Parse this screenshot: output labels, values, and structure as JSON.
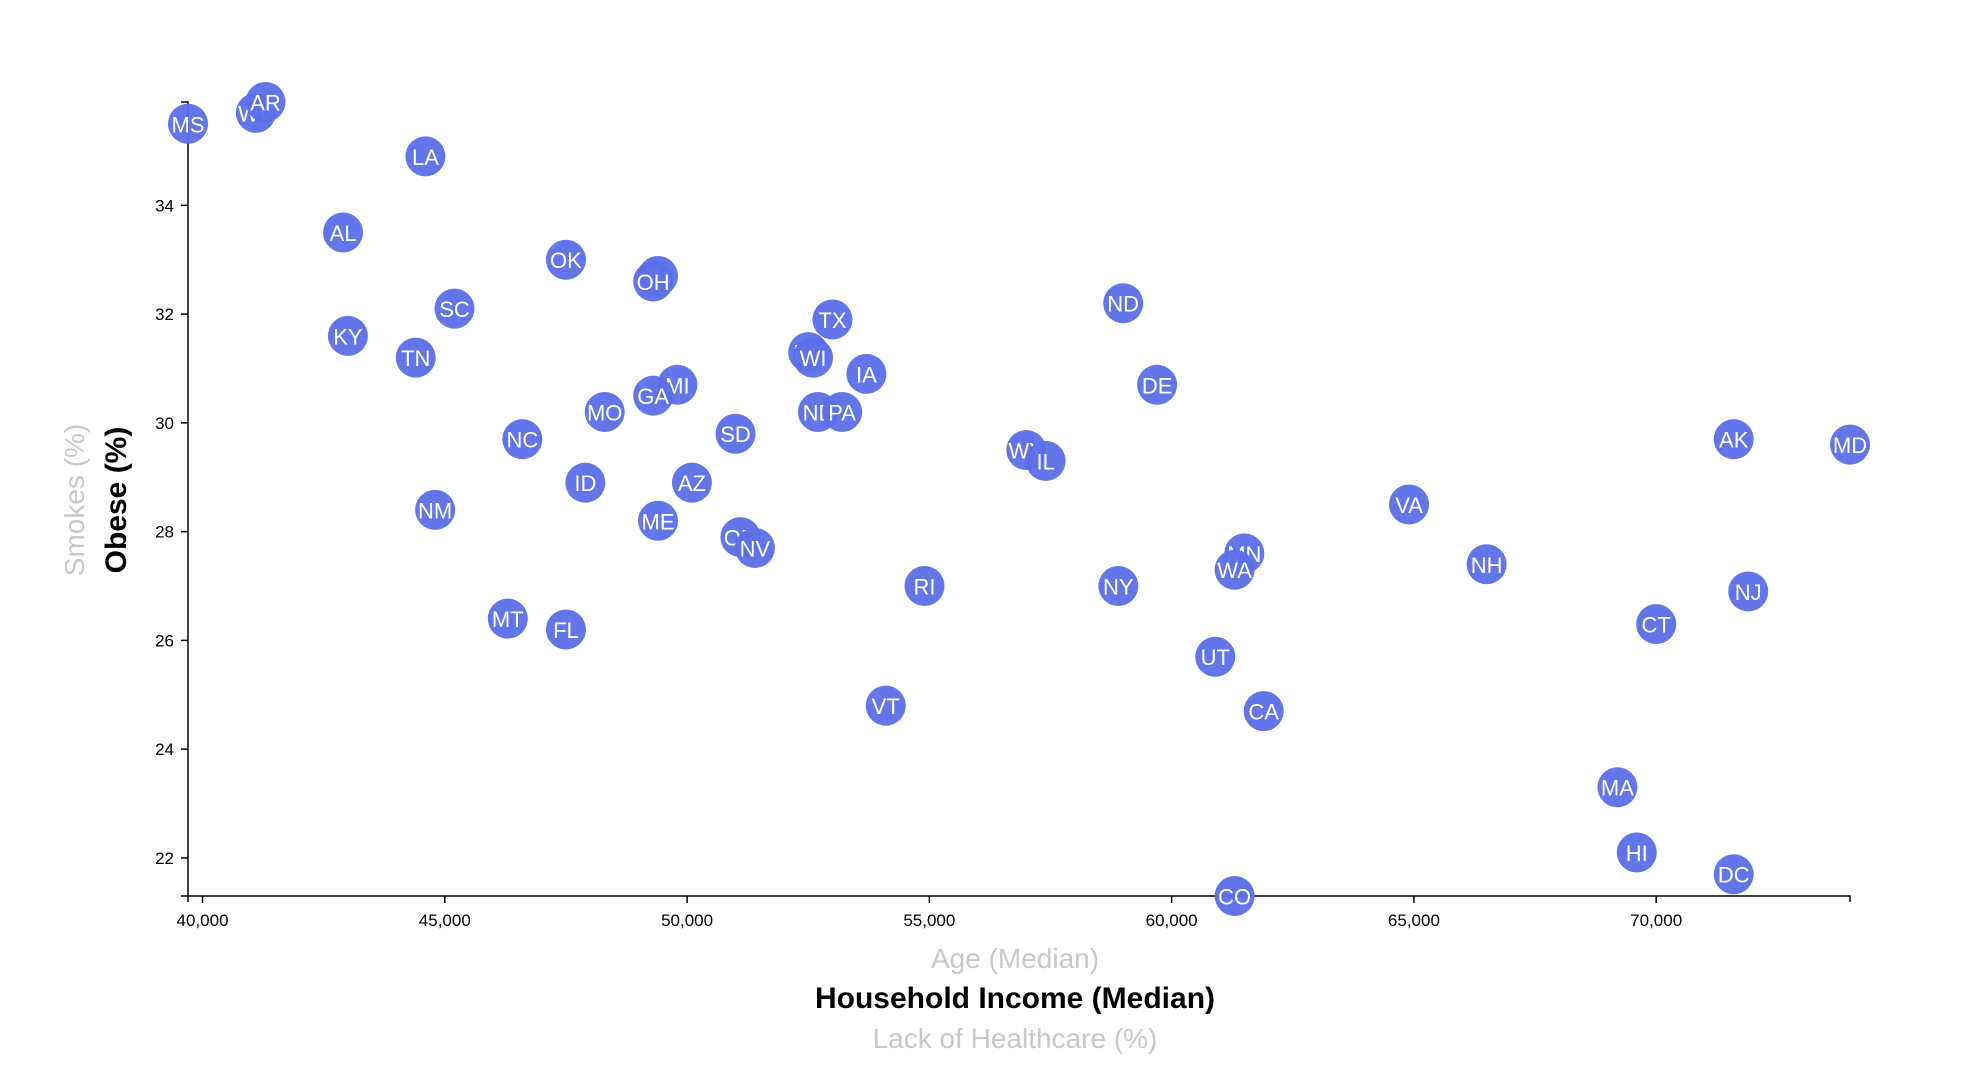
{
  "chart_data": {
    "type": "scatter",
    "x_axis": {
      "active_label": "Household Income (Median)",
      "inactive_labels": [
        "Age (Median)",
        "Lack of Healthcare (%)"
      ],
      "range": [
        39700,
        74000
      ],
      "ticks": [
        40000,
        45000,
        50000,
        55000,
        60000,
        65000,
        70000
      ],
      "tick_labels": [
        "40,000",
        "45,000",
        "50,000",
        "55,000",
        "60,000",
        "65,000",
        "70,000"
      ]
    },
    "y_axis": {
      "active_label": "Obese (%)",
      "inactive_labels": [
        "Smokes (%)"
      ],
      "range": [
        21.3,
        35.9
      ],
      "ticks": [
        22,
        24,
        26,
        28,
        30,
        32,
        34
      ],
      "tick_labels": [
        "22",
        "24",
        "26",
        "28",
        "30",
        "32",
        "34"
      ]
    },
    "grid": false,
    "colors": {
      "marker": "#5a6fe8",
      "marker_label": "#ffffff",
      "inactive_axis_label": "#c8c8c8"
    },
    "points": [
      {
        "label": "MS",
        "x": 39700,
        "y": 35.5
      },
      {
        "label": "WV",
        "x": 41100,
        "y": 35.7
      },
      {
        "label": "AR",
        "x": 41300,
        "y": 35.9
      },
      {
        "label": "LA",
        "x": 44600,
        "y": 34.9
      },
      {
        "label": "AL",
        "x": 42900,
        "y": 33.5
      },
      {
        "label": "OK",
        "x": 47500,
        "y": 33.0
      },
      {
        "label": "IN",
        "x": 49400,
        "y": 32.7
      },
      {
        "label": "OH",
        "x": 49300,
        "y": 32.6
      },
      {
        "label": "SC",
        "x": 45200,
        "y": 32.1
      },
      {
        "label": "KY",
        "x": 43000,
        "y": 31.6
      },
      {
        "label": "TN",
        "x": 44400,
        "y": 31.2
      },
      {
        "label": "TX",
        "x": 53000,
        "y": 31.9
      },
      {
        "label": "KS",
        "x": 52500,
        "y": 31.3
      },
      {
        "label": "WI",
        "x": 52600,
        "y": 31.2
      },
      {
        "label": "IA",
        "x": 53700,
        "y": 30.9
      },
      {
        "label": "MI",
        "x": 49800,
        "y": 30.7
      },
      {
        "label": "GA",
        "x": 49300,
        "y": 30.5
      },
      {
        "label": "MO",
        "x": 48300,
        "y": 30.2
      },
      {
        "label": "NE",
        "x": 52700,
        "y": 30.2
      },
      {
        "label": "PA",
        "x": 53200,
        "y": 30.2
      },
      {
        "label": "SD",
        "x": 51000,
        "y": 29.8
      },
      {
        "label": "NC",
        "x": 46600,
        "y": 29.7
      },
      {
        "label": "ID",
        "x": 47900,
        "y": 28.9
      },
      {
        "label": "AZ",
        "x": 50100,
        "y": 28.9
      },
      {
        "label": "NM",
        "x": 44800,
        "y": 28.4
      },
      {
        "label": "ME",
        "x": 49400,
        "y": 28.2
      },
      {
        "label": "OR",
        "x": 51100,
        "y": 27.9
      },
      {
        "label": "NV",
        "x": 51400,
        "y": 27.7
      },
      {
        "label": "RI",
        "x": 54900,
        "y": 27.0
      },
      {
        "label": "MT",
        "x": 46300,
        "y": 26.4
      },
      {
        "label": "FL",
        "x": 47500,
        "y": 26.2
      },
      {
        "label": "VT",
        "x": 54100,
        "y": 24.8
      },
      {
        "label": "ND",
        "x": 59000,
        "y": 32.2
      },
      {
        "label": "DE",
        "x": 59700,
        "y": 30.7
      },
      {
        "label": "WY",
        "x": 57000,
        "y": 29.5
      },
      {
        "label": "IL",
        "x": 57400,
        "y": 29.3
      },
      {
        "label": "NY",
        "x": 58900,
        "y": 27.0
      },
      {
        "label": "MN",
        "x": 61500,
        "y": 27.6
      },
      {
        "label": "WA",
        "x": 61300,
        "y": 27.3
      },
      {
        "label": "UT",
        "x": 60900,
        "y": 25.7
      },
      {
        "label": "CA",
        "x": 61900,
        "y": 24.7
      },
      {
        "label": "CO",
        "x": 61300,
        "y": 21.3
      },
      {
        "label": "VA",
        "x": 64900,
        "y": 28.5
      },
      {
        "label": "NH",
        "x": 66500,
        "y": 27.4
      },
      {
        "label": "AK",
        "x": 71600,
        "y": 29.7
      },
      {
        "label": "MD",
        "x": 74000,
        "y": 29.6
      },
      {
        "label": "NJ",
        "x": 71900,
        "y": 26.9
      },
      {
        "label": "CT",
        "x": 70000,
        "y": 26.3
      },
      {
        "label": "MA",
        "x": 69200,
        "y": 23.3
      },
      {
        "label": "HI",
        "x": 69600,
        "y": 22.1
      },
      {
        "label": "DC",
        "x": 71600,
        "y": 21.7
      }
    ]
  }
}
